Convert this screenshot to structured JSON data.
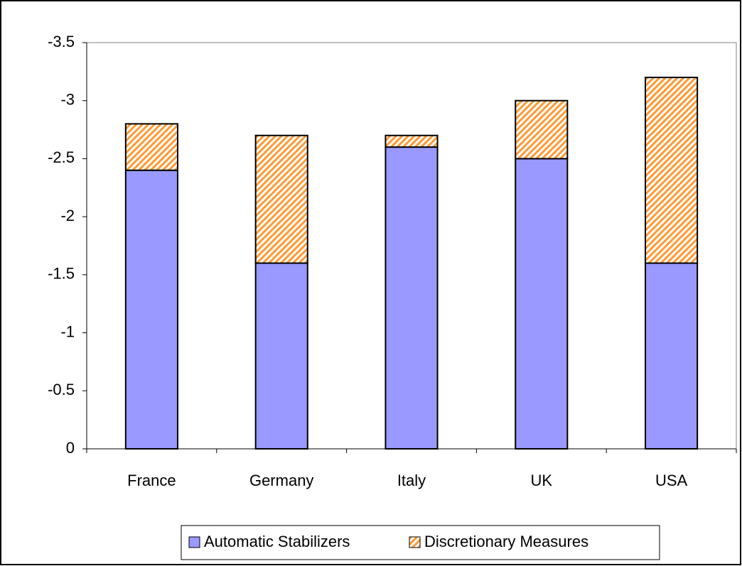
{
  "chart_data": {
    "type": "stacked_bar",
    "categories": [
      "France",
      "Germany",
      "Italy",
      "UK",
      "USA"
    ],
    "series": [
      {
        "name": "Automatic Stabilizers",
        "color": "#9999ff",
        "values": [
          -2.4,
          -1.6,
          -2.6,
          -2.5,
          -1.6
        ]
      },
      {
        "name": "Discretionary Measures",
        "color": "#ff9933",
        "pattern": "hatch",
        "values": [
          -0.4,
          -1.1,
          -0.1,
          -0.5,
          -1.6
        ]
      }
    ],
    "ylim": [
      0,
      -3.5
    ],
    "yticks": [
      0,
      -0.5,
      -1,
      -1.5,
      -2,
      -2.5,
      -3,
      -3.5
    ],
    "legend": "bottom"
  }
}
